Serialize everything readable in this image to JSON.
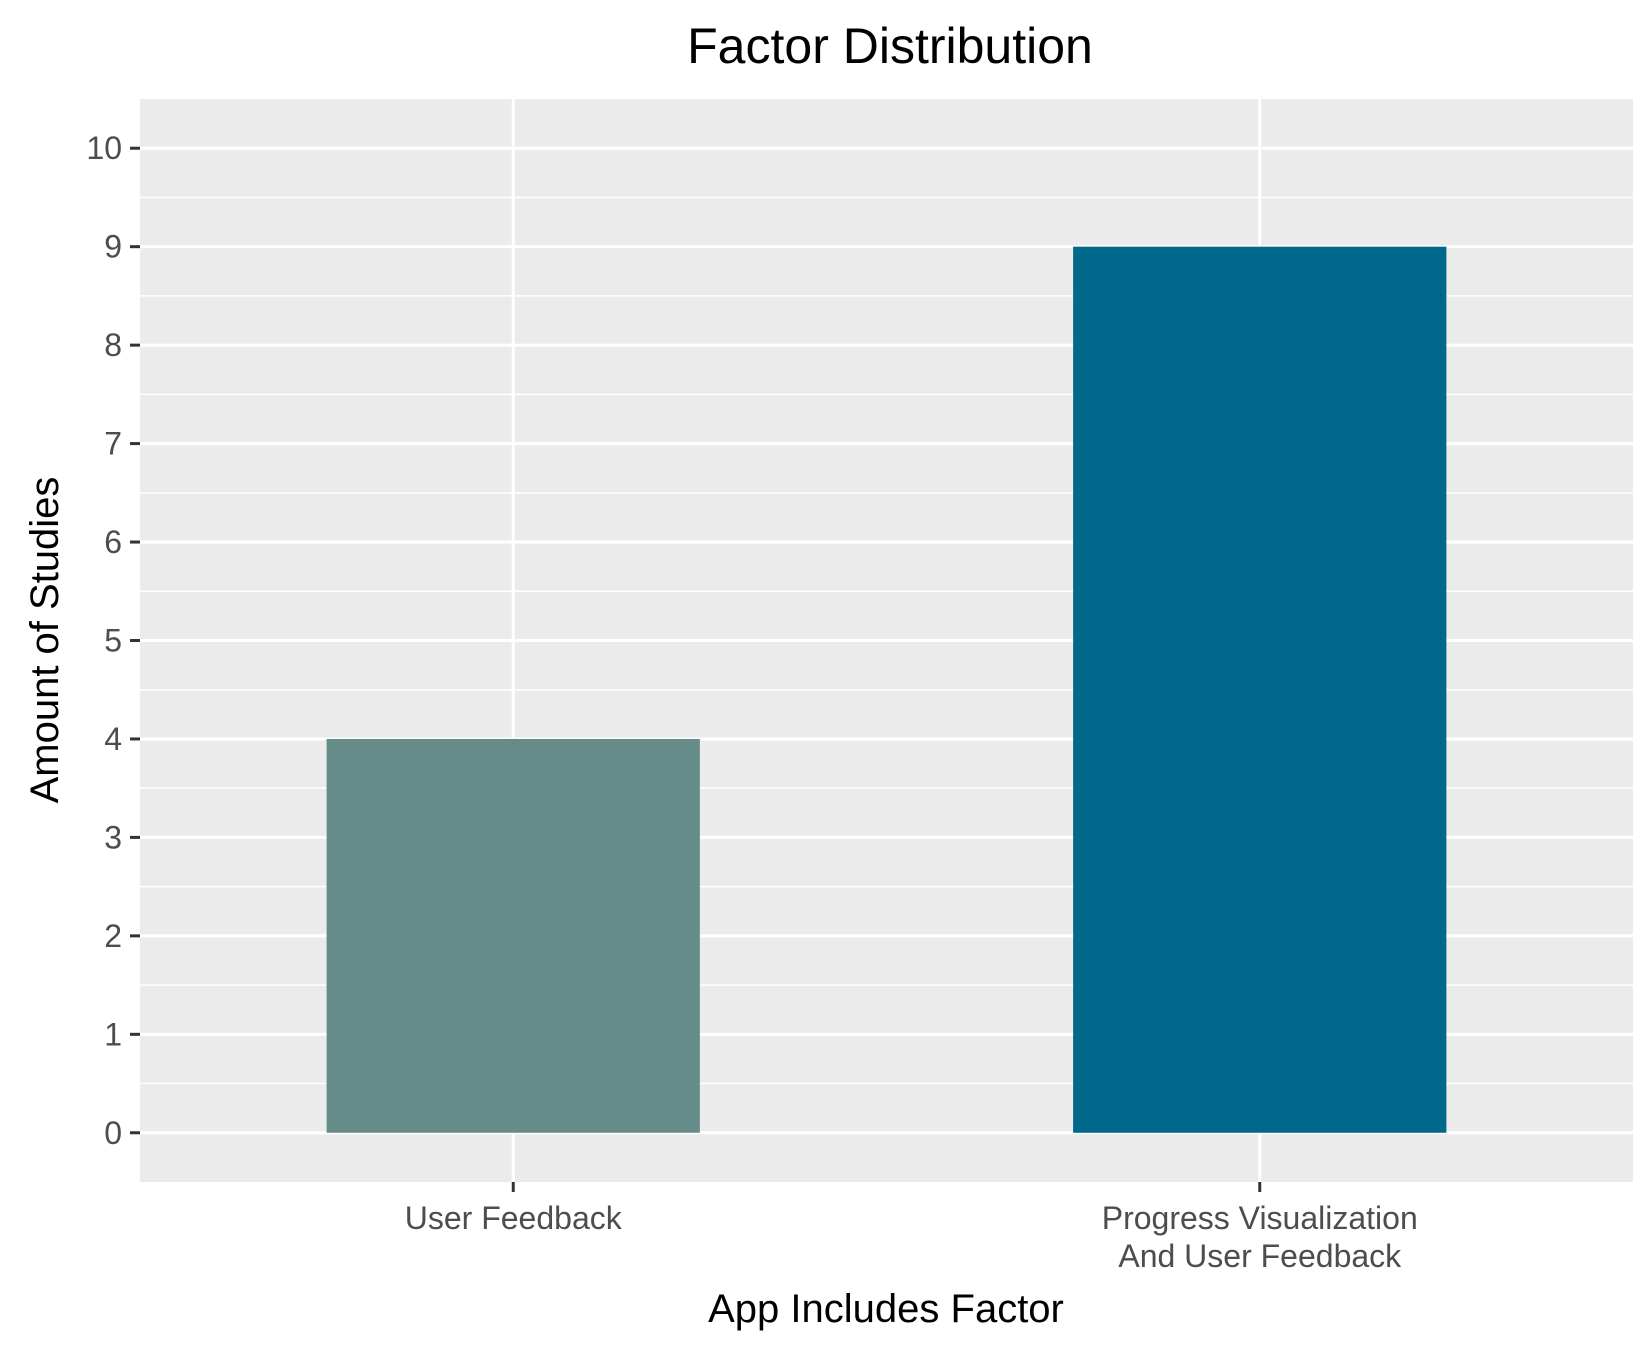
{
  "chart_data": {
    "type": "bar",
    "title": "Factor Distribution",
    "xlabel": "App Includes Factor",
    "ylabel": "Amount of Studies",
    "categories": [
      [
        "User Feedback"
      ],
      [
        "Progress Visualization",
        "And User Feedback"
      ]
    ],
    "values": [
      4,
      9
    ],
    "colors": [
      "#668c8a",
      "#00688b"
    ],
    "ylim": [
      -0.5,
      10.5
    ],
    "yticks": [
      0,
      1,
      2,
      3,
      4,
      5,
      6,
      7,
      8,
      9,
      10
    ],
    "grid": true,
    "background": "#ebebeb",
    "grid_color": "#ffffff"
  }
}
